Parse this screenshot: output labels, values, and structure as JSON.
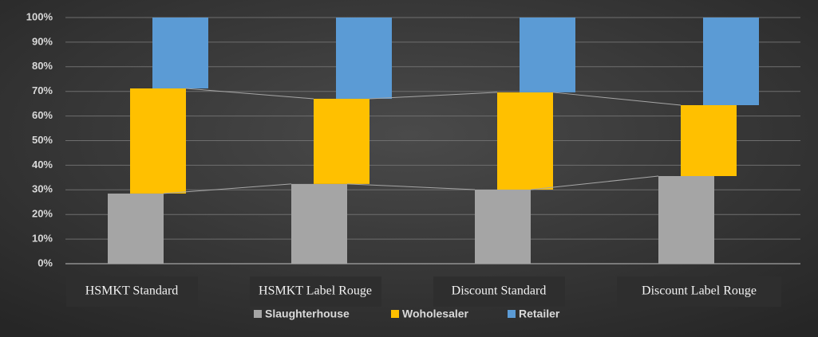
{
  "chart_data": {
    "type": "stacked_bar",
    "categories": [
      "HSMKT  Standard",
      "HSMKT  Label Rouge",
      "Discount Standard",
      "Discount Label Rouge"
    ],
    "series": [
      {
        "name": "Slaughterhouse",
        "color": "#a5a5a5",
        "values": [
          28.5,
          32.4,
          30.1,
          35.6
        ]
      },
      {
        "name": "Woholesaler",
        "color": "#ffc000",
        "values": [
          42.7,
          34.6,
          39.5,
          28.8
        ]
      },
      {
        "name": "Retailer",
        "color": "#5b9bd5",
        "values": [
          28.8,
          33.0,
          30.4,
          35.6
        ]
      }
    ],
    "ylim": [
      0,
      100
    ],
    "yticks": [
      {
        "value": 0,
        "label": "0%"
      },
      {
        "value": 10,
        "label": "10%"
      },
      {
        "value": 20,
        "label": "20%"
      },
      {
        "value": 30,
        "label": "30%"
      },
      {
        "value": 40,
        "label": "40%"
      },
      {
        "value": 50,
        "label": "50%"
      },
      {
        "value": 60,
        "label": "60%"
      },
      {
        "value": 70,
        "label": "70%"
      },
      {
        "value": 80,
        "label": "80%"
      },
      {
        "value": 90,
        "label": "90%"
      },
      {
        "value": 100,
        "label": "100%"
      }
    ],
    "grid": true,
    "legend": "bottom"
  }
}
